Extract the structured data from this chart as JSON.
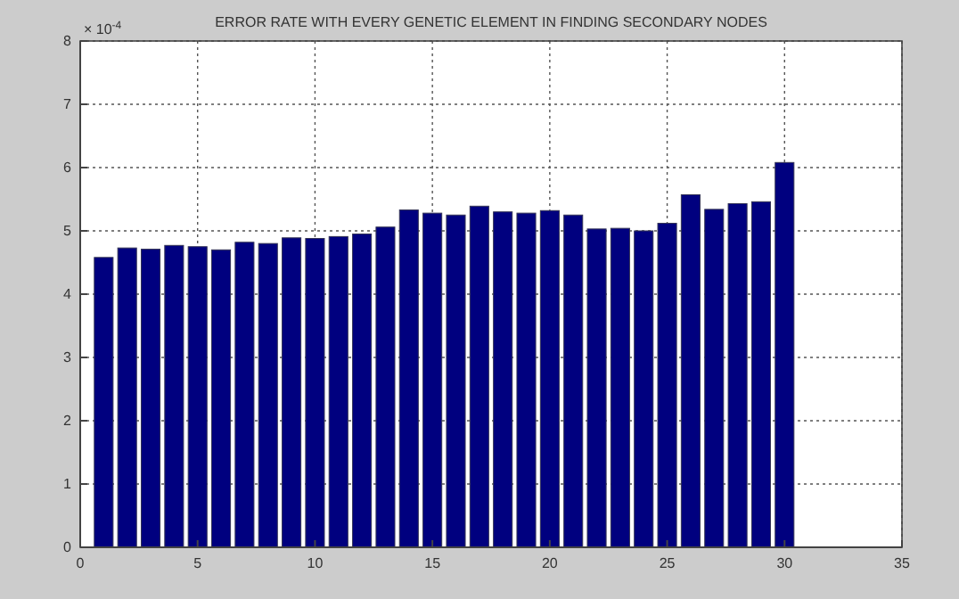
{
  "chart_data": {
    "type": "bar",
    "title": "ERROR RATE WITH EVERY GENETIC ELEMENT IN FINDING SECONDARY NODES",
    "annotations": [
      "× 10$^{-4}$"
    ],
    "x": [
      1,
      2,
      3,
      4,
      5,
      6,
      7,
      8,
      9,
      10,
      11,
      12,
      13,
      14,
      15,
      16,
      17,
      18,
      19,
      20,
      21,
      22,
      23,
      24,
      25,
      26,
      27,
      28,
      29,
      30
    ],
    "values": [
      4.58,
      4.73,
      4.71,
      4.77,
      4.75,
      4.7,
      4.82,
      4.8,
      4.89,
      4.88,
      4.91,
      4.95,
      5.06,
      5.33,
      5.28,
      5.25,
      5.39,
      5.3,
      5.28,
      5.32,
      5.25,
      5.03,
      5.04,
      5.0,
      5.12,
      5.57,
      5.34,
      5.43,
      5.46,
      6.08
    ],
    "color": "#00007f",
    "xlim": [
      0,
      35
    ],
    "xticks": [
      0,
      5,
      10,
      15,
      20,
      25,
      30,
      35
    ],
    "ylim": [
      0,
      8
    ],
    "yticks": [
      0,
      1,
      2,
      3,
      4,
      5,
      6,
      7,
      8
    ],
    "grid": true
  }
}
